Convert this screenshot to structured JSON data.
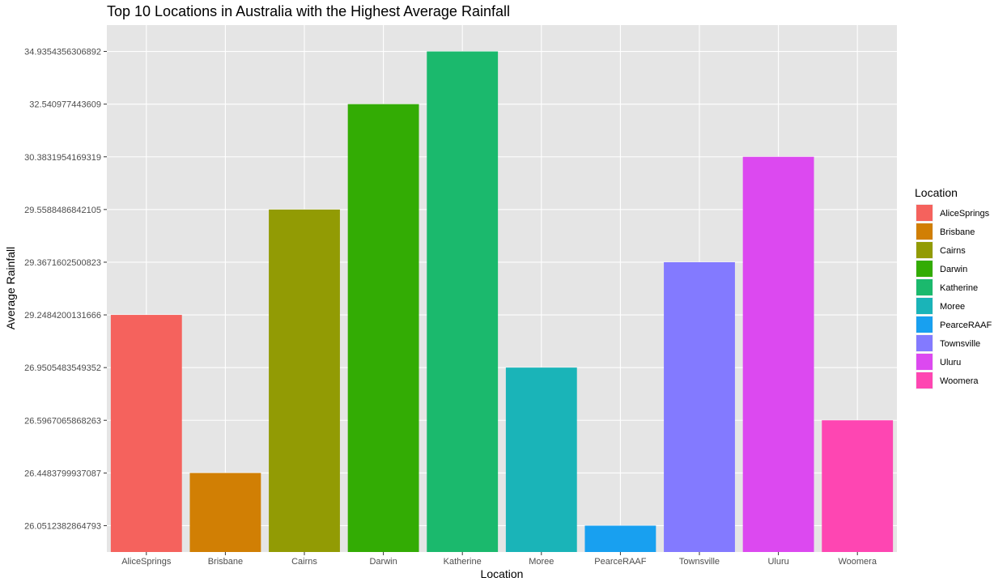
{
  "chart_data": {
    "type": "bar",
    "title": "Top 10 Locations in Australia with the Highest Average Rainfall",
    "xlabel": "Location",
    "ylabel": "Average Rainfall",
    "y_axis_scale": "discrete",
    "grid": true,
    "legend": {
      "title": "Location",
      "placement": "right"
    },
    "categories": [
      "AliceSprings",
      "Brisbane",
      "Cairns",
      "Darwin",
      "Katherine",
      "Moree",
      "PearceRAAF",
      "Townsville",
      "Uluru",
      "Woomera"
    ],
    "values": [
      29.2484200131666,
      26.4483799937087,
      29.5588486842105,
      32.540977443609,
      34.9354356306892,
      26.9505483549352,
      26.0512382864793,
      29.3671602500823,
      30.3831954169319,
      26.5967065868263
    ],
    "y_ticks": [
      "26.0512382864793",
      "26.4483799937087",
      "26.5967065868263",
      "26.9505483549352",
      "29.2484200131666",
      "29.3671602500823",
      "29.5588486842105",
      "30.3831954169319",
      "32.540977443609",
      "34.9354356306892"
    ],
    "colors": [
      "#F8766D",
      "#D39200",
      "#93AA00",
      "#00BA38",
      "#00C19F",
      "#00B9E3",
      "#00A5FF",
      "#8F7FFF",
      "#DB72FB",
      "#FF61C3"
    ],
    "legend_colors": [
      "#F5625D",
      "#D17F04",
      "#929B04",
      "#33AC04",
      "#1BB96D",
      "#1AB4B8",
      "#18A0F0",
      "#837AFF",
      "#DC49F0",
      "#FE46B2"
    ],
    "panel_background": "#E5E5E5",
    "grid_color": "#FFFFFF"
  }
}
